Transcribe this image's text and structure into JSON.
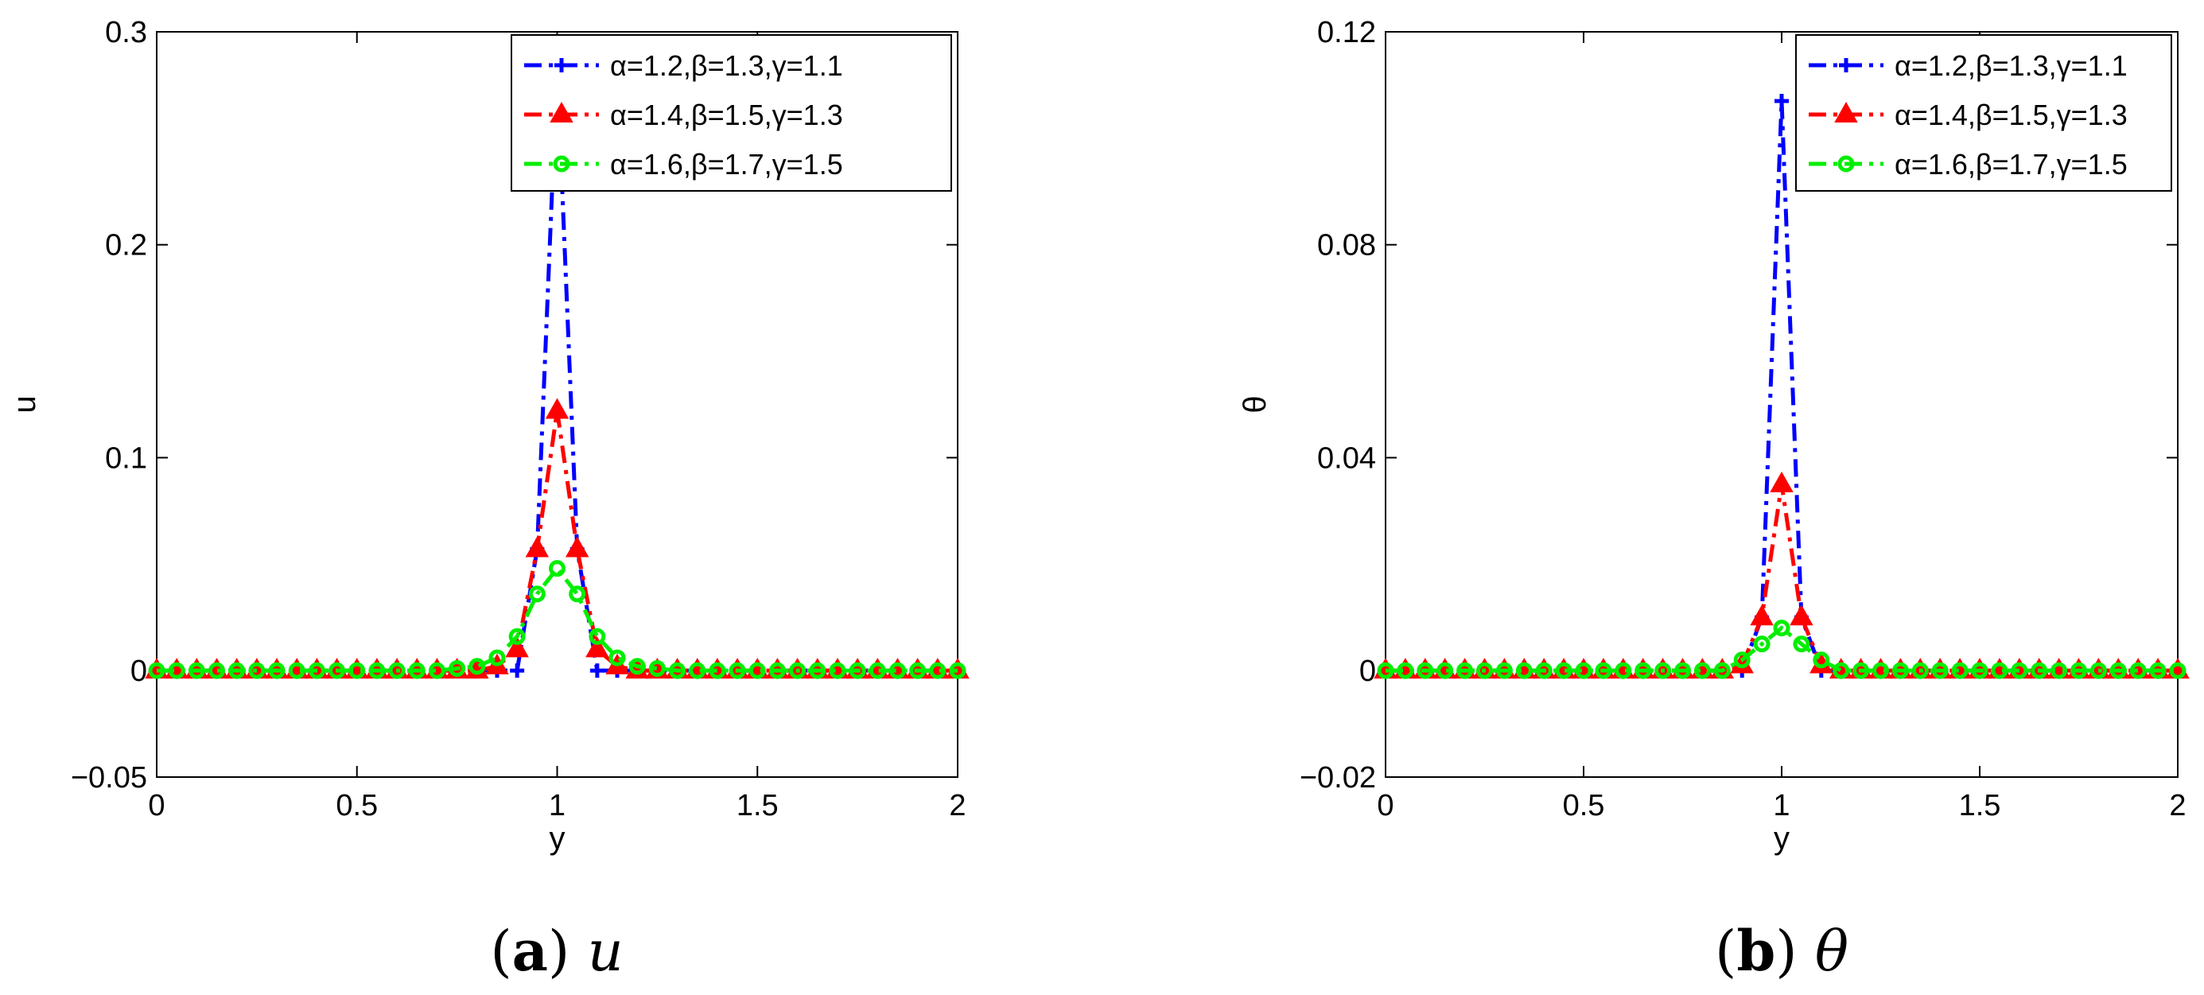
{
  "chart_data": [
    {
      "type": "line",
      "panel": "a",
      "caption_letter": "a",
      "caption_symbol": "u",
      "xlabel": "y",
      "ylabel": "u",
      "xlim": [
        0,
        2
      ],
      "ylim": [
        -0.05,
        0.3
      ],
      "xticks": [
        "0",
        "0.5",
        "1",
        "1.5",
        "2"
      ],
      "yticks": [
        "−0.05",
        "0",
        "0.1",
        "0.2",
        "0.3"
      ],
      "ytick_values": [
        -0.05,
        0,
        0.1,
        0.2,
        0.3
      ],
      "xtick_values": [
        0,
        0.5,
        1,
        1.5,
        2
      ],
      "legend_position": "top-right",
      "x": [
        0,
        0.05,
        0.1,
        0.15,
        0.2,
        0.25,
        0.3,
        0.35,
        0.4,
        0.45,
        0.5,
        0.55,
        0.6,
        0.65,
        0.7,
        0.75,
        0.8,
        0.85,
        0.9,
        0.95,
        1.0,
        1.05,
        1.1,
        1.15,
        1.2,
        1.25,
        1.3,
        1.35,
        1.4,
        1.45,
        1.5,
        1.55,
        1.6,
        1.65,
        1.7,
        1.75,
        1.8,
        1.85,
        1.9,
        1.95,
        2.0
      ],
      "series": [
        {
          "name": "α=1.2,β=1.3,γ=1.1",
          "color": "#0000ff",
          "marker": "plus",
          "dash": "dashdot",
          "values": [
            0,
            0,
            0,
            0,
            0,
            0,
            0,
            0,
            0,
            0,
            0,
            0,
            0,
            0,
            0,
            0,
            0,
            0,
            0,
            0.057,
            0.283,
            0.057,
            0,
            0,
            0,
            0,
            0,
            0,
            0,
            0,
            0,
            0,
            0,
            0,
            0,
            0,
            0,
            0,
            0,
            0,
            0
          ]
        },
        {
          "name": "α=1.4,β=1.5,γ=1.3",
          "color": "#ff0000",
          "marker": "triangle",
          "dash": "dashdot",
          "values": [
            0,
            0,
            0,
            0,
            0,
            0,
            0,
            0,
            0,
            0,
            0,
            0,
            0,
            0,
            0,
            0,
            0,
            0.002,
            0.01,
            0.057,
            0.122,
            0.057,
            0.01,
            0.002,
            0,
            0,
            0,
            0,
            0,
            0,
            0,
            0,
            0,
            0,
            0,
            0,
            0,
            0,
            0,
            0,
            0
          ]
        },
        {
          "name": "α=1.6,β=1.7,γ=1.5",
          "color": "#00ee00",
          "marker": "circle",
          "dash": "dashdot",
          "values": [
            0,
            0,
            0,
            0,
            0,
            0,
            0,
            0,
            0,
            0,
            0,
            0,
            0,
            0,
            0,
            0.001,
            0.002,
            0.006,
            0.016,
            0.036,
            0.048,
            0.036,
            0.016,
            0.006,
            0.002,
            0.001,
            0,
            0,
            0,
            0,
            0,
            0,
            0,
            0,
            0,
            0,
            0,
            0,
            0,
            0,
            0
          ]
        }
      ]
    },
    {
      "type": "line",
      "panel": "b",
      "caption_letter": "b",
      "caption_symbol": "θ",
      "xlabel": "y",
      "ylabel": "θ",
      "xlim": [
        0,
        2
      ],
      "ylim": [
        -0.02,
        0.12
      ],
      "xticks": [
        "0",
        "0.5",
        "1",
        "1.5",
        "2"
      ],
      "yticks": [
        "−0.02",
        "0",
        "0.04",
        "0.08",
        "0.12"
      ],
      "ytick_values": [
        -0.02,
        0,
        0.04,
        0.08,
        0.12
      ],
      "xtick_values": [
        0,
        0.5,
        1,
        1.5,
        2
      ],
      "legend_position": "top-right",
      "x": [
        0,
        0.05,
        0.1,
        0.15,
        0.2,
        0.25,
        0.3,
        0.35,
        0.4,
        0.45,
        0.5,
        0.55,
        0.6,
        0.65,
        0.7,
        0.75,
        0.8,
        0.85,
        0.9,
        0.95,
        1.0,
        1.05,
        1.1,
        1.15,
        1.2,
        1.25,
        1.3,
        1.35,
        1.4,
        1.45,
        1.5,
        1.55,
        1.6,
        1.65,
        1.7,
        1.75,
        1.8,
        1.85,
        1.9,
        1.95,
        2.0
      ],
      "series": [
        {
          "name": "α=1.2,β=1.3,γ=1.1",
          "color": "#0000ff",
          "marker": "plus",
          "dash": "dashdot",
          "values": [
            0,
            0,
            0,
            0,
            0,
            0,
            0,
            0,
            0,
            0,
            0,
            0,
            0,
            0,
            0,
            0,
            0,
            0,
            0,
            0.01,
            0.107,
            0.01,
            0,
            0,
            0,
            0,
            0,
            0,
            0,
            0,
            0,
            0,
            0,
            0,
            0,
            0,
            0,
            0,
            0,
            0,
            0
          ]
        },
        {
          "name": "α=1.4,β=1.5,γ=1.3",
          "color": "#ff0000",
          "marker": "triangle",
          "dash": "dashdot",
          "values": [
            0,
            0,
            0,
            0,
            0,
            0,
            0,
            0,
            0,
            0,
            0,
            0,
            0,
            0,
            0,
            0,
            0,
            0,
            0.001,
            0.01,
            0.035,
            0.01,
            0.001,
            0,
            0,
            0,
            0,
            0,
            0,
            0,
            0,
            0,
            0,
            0,
            0,
            0,
            0,
            0,
            0,
            0,
            0
          ]
        },
        {
          "name": "α=1.6,β=1.7,γ=1.5",
          "color": "#00ee00",
          "marker": "circle",
          "dash": "dashdot",
          "values": [
            0,
            0,
            0,
            0,
            0,
            0,
            0,
            0,
            0,
            0,
            0,
            0,
            0,
            0,
            0,
            0,
            0,
            0,
            0.002,
            0.005,
            0.008,
            0.005,
            0.002,
            0,
            0,
            0,
            0,
            0,
            0,
            0,
            0,
            0,
            0,
            0,
            0,
            0,
            0,
            0,
            0,
            0,
            0
          ]
        }
      ]
    }
  ]
}
